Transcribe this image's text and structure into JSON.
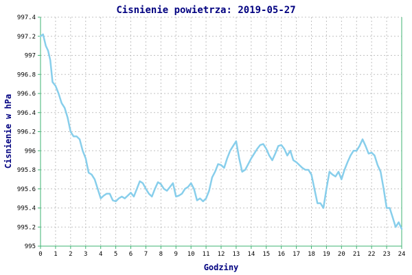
{
  "chart_data": {
    "type": "line",
    "title": "Cisnienie powietrza: 2019-05-27",
    "xlabel": "Godziny",
    "ylabel": "Cisnienie w hPa",
    "xlim": [
      0,
      24
    ],
    "ylim": [
      995,
      997.4
    ],
    "x_ticks": [
      "0",
      "1",
      "2",
      "3",
      "4",
      "5",
      "6",
      "7",
      "8",
      "9",
      "10",
      "11",
      "12",
      "13",
      "14",
      "15",
      "16",
      "17",
      "18",
      "19",
      "20",
      "21",
      "22",
      "23",
      "24"
    ],
    "y_ticks": [
      "997.4",
      "997.2",
      "997",
      "996.8",
      "996.6",
      "996.4",
      "996.2",
      "996",
      "995.8",
      "995.6",
      "995.4",
      "995.2",
      "995"
    ],
    "grid": true,
    "colors": {
      "title": "#000080",
      "axis_label": "#000080",
      "axis": "#3cb371",
      "line": "#87ceeb",
      "grid": "#c0c0c0"
    },
    "series": [
      {
        "x": [
          0.0,
          0.17,
          0.35,
          0.5,
          0.65,
          0.8,
          1.0,
          1.2,
          1.4,
          1.6,
          1.8,
          2.0,
          2.2,
          2.4,
          2.6,
          2.8,
          3.0,
          3.2,
          3.4,
          3.6,
          3.8,
          4.0,
          4.2,
          4.4,
          4.6,
          4.8,
          5.0,
          5.2,
          5.4,
          5.6,
          5.8,
          6.0,
          6.2,
          6.4,
          6.6,
          6.8,
          7.0,
          7.2,
          7.4,
          7.6,
          7.8,
          8.0,
          8.2,
          8.4,
          8.6,
          8.8,
          9.0,
          9.2,
          9.4,
          9.6,
          9.8,
          10.0,
          10.2,
          10.4,
          10.6,
          10.8,
          11.0,
          11.2,
          11.4,
          11.6,
          11.8,
          12.0,
          12.2,
          12.4,
          12.6,
          12.8,
          13.0,
          13.2,
          13.4,
          13.6,
          13.8,
          14.0,
          14.2,
          14.4,
          14.6,
          14.8,
          15.0,
          15.2,
          15.4,
          15.6,
          15.8,
          16.0,
          16.2,
          16.4,
          16.6,
          16.8,
          17.0,
          17.2,
          17.4,
          17.6,
          17.8,
          18.0,
          18.2,
          18.4,
          18.6,
          18.8,
          19.0,
          19.2,
          19.4,
          19.6,
          19.8,
          20.0,
          20.2,
          20.4,
          20.6,
          20.8,
          21.0,
          21.2,
          21.4,
          21.6,
          21.8,
          22.0,
          22.2,
          22.4,
          22.6,
          22.8,
          23.0,
          23.2,
          23.4,
          23.6,
          23.8,
          24.0
        ],
        "values": [
          997.2,
          997.22,
          997.1,
          997.05,
          996.95,
          996.72,
          996.68,
          996.6,
          996.5,
          996.45,
          996.35,
          996.2,
          996.15,
          996.15,
          996.12,
          996.0,
          995.92,
          995.77,
          995.75,
          995.7,
          995.6,
          995.5,
          995.53,
          995.55,
          995.55,
          995.48,
          995.47,
          995.5,
          995.52,
          995.5,
          995.53,
          995.56,
          995.52,
          995.6,
          995.68,
          995.66,
          995.6,
          995.55,
          995.52,
          995.6,
          995.67,
          995.65,
          995.6,
          995.58,
          995.62,
          995.66,
          995.52,
          995.53,
          995.55,
          995.6,
          995.62,
          995.66,
          995.6,
          995.48,
          995.5,
          995.47,
          995.5,
          995.58,
          995.72,
          995.78,
          995.86,
          995.85,
          995.82,
          995.92,
          996.0,
          996.05,
          996.1,
          995.92,
          995.78,
          995.8,
          995.86,
          995.92,
          995.97,
          996.02,
          996.06,
          996.07,
          996.02,
          995.95,
          995.9,
          995.97,
          996.05,
          996.06,
          996.02,
          995.95,
          996.0,
          995.9,
          995.88,
          995.85,
          995.82,
          995.8,
          995.8,
          995.75,
          995.6,
          995.45,
          995.45,
          995.4,
          995.6,
          995.78,
          995.75,
          995.73,
          995.78,
          995.7,
          995.8,
          995.88,
          995.95,
          996.0,
          996.0,
          996.05,
          996.12,
          996.05,
          995.97,
          995.98,
          995.95,
          995.85,
          995.78,
          995.6,
          995.4,
          995.4,
          995.3,
          995.2,
          995.25,
          995.18
        ]
      }
    ]
  }
}
